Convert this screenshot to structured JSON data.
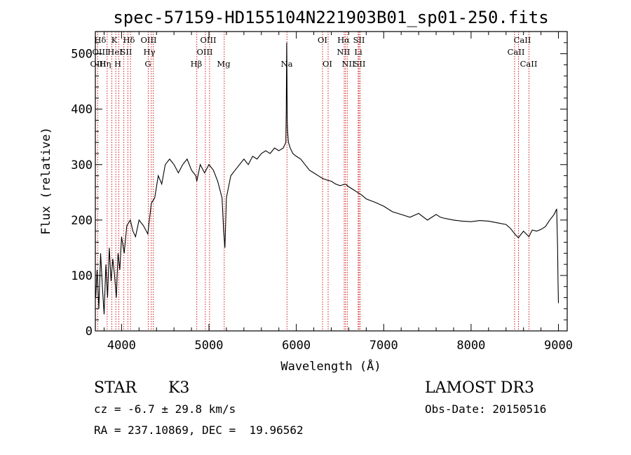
{
  "chart_data": {
    "type": "line",
    "title": "spec-57159-HD155104N221903B01_sp01-250.fits",
    "xlabel": "Wavelength (Å)",
    "ylabel": "Flux (relative)",
    "xlim": [
      3700,
      9100
    ],
    "ylim": [
      0,
      540
    ],
    "x_ticks": [
      4000,
      5000,
      6000,
      7000,
      8000,
      9000
    ],
    "x_tick_labels": [
      "4000",
      "5000",
      "6000",
      "7000",
      "8000",
      "9000"
    ],
    "y_ticks": [
      0,
      100,
      200,
      300,
      400,
      500
    ],
    "y_tick_labels": [
      "0",
      "100",
      "200",
      "300",
      "400",
      "500"
    ],
    "series": [
      {
        "name": "Flux",
        "x": [
          3705,
          3720,
          3740,
          3760,
          3780,
          3800,
          3820,
          3840,
          3860,
          3880,
          3900,
          3920,
          3940,
          3960,
          3980,
          4000,
          4030,
          4060,
          4100,
          4130,
          4160,
          4200,
          4250,
          4300,
          4340,
          4380,
          4420,
          4460,
          4500,
          4550,
          4600,
          4650,
          4700,
          4750,
          4800,
          4850,
          4861,
          4900,
          4950,
          5000,
          5050,
          5100,
          5150,
          5168,
          5183,
          5200,
          5250,
          5300,
          5350,
          5400,
          5450,
          5500,
          5550,
          5600,
          5650,
          5700,
          5750,
          5800,
          5850,
          5880,
          5885,
          5890,
          5893,
          5896,
          5900,
          5910,
          5930,
          5960,
          6000,
          6050,
          6100,
          6150,
          6200,
          6250,
          6300,
          6350,
          6400,
          6450,
          6500,
          6563,
          6600,
          6650,
          6700,
          6750,
          6800,
          6900,
          7000,
          7100,
          7200,
          7300,
          7400,
          7500,
          7600,
          7650,
          7700,
          7800,
          7900,
          8000,
          8100,
          8200,
          8300,
          8400,
          8450,
          8500,
          8542,
          8560,
          8600,
          8662,
          8700,
          8750,
          8800,
          8850,
          8900,
          8950,
          8980,
          8990,
          8995,
          9000
        ],
        "values": [
          60,
          110,
          40,
          140,
          80,
          30,
          120,
          60,
          150,
          90,
          130,
          100,
          60,
          140,
          110,
          170,
          140,
          190,
          200,
          180,
          170,
          200,
          190,
          175,
          230,
          240,
          280,
          265,
          300,
          310,
          300,
          285,
          300,
          310,
          290,
          280,
          270,
          300,
          285,
          300,
          290,
          270,
          240,
          180,
          150,
          240,
          280,
          290,
          300,
          310,
          300,
          315,
          310,
          320,
          325,
          320,
          330,
          325,
          330,
          340,
          400,
          520,
          460,
          380,
          360,
          340,
          330,
          320,
          315,
          310,
          300,
          290,
          285,
          280,
          275,
          272,
          270,
          265,
          262,
          265,
          260,
          255,
          250,
          245,
          238,
          232,
          225,
          215,
          210,
          205,
          212,
          200,
          210,
          205,
          203,
          200,
          198,
          197,
          199,
          198,
          195,
          192,
          185,
          175,
          168,
          172,
          180,
          170,
          182,
          180,
          183,
          188,
          200,
          210,
          220,
          150,
          90,
          50
        ],
        "color": "#000000"
      }
    ],
    "line_labels": {
      "row1": [
        "Hδ",
        "K",
        "Hδ",
        "OIII",
        "OIII",
        "OI",
        "Hα",
        "SII",
        "CaII"
      ],
      "row2": [
        "OIII",
        "HeI",
        "SII",
        "Hγ",
        "OIII",
        "NII",
        "Li",
        "CaII"
      ],
      "row3": [
        "OIII",
        "Hη",
        "H",
        "G",
        "Hβ",
        "Mg",
        "Na",
        "OI",
        "NII",
        "SII",
        "CaII"
      ]
    },
    "line_markers": [
      {
        "label": "OIII",
        "x": 3727
      },
      {
        "label": "Hη",
        "x": 3835
      },
      {
        "label": "Hδ",
        "x": 3889
      },
      {
        "label": "K",
        "x": 3934
      },
      {
        "label": "H",
        "x": 3968
      },
      {
        "label": "HeI",
        "x": 4026
      },
      {
        "label": "SII",
        "x": 4072
      },
      {
        "label": "Hδ",
        "x": 4102
      },
      {
        "label": "G",
        "x": 4305
      },
      {
        "label": "Hγ",
        "x": 4340
      },
      {
        "label": "OIII",
        "x": 4363
      },
      {
        "label": "Hβ",
        "x": 4861
      },
      {
        "label": "OIII",
        "x": 4959
      },
      {
        "label": "OIII",
        "x": 5007
      },
      {
        "label": "Mg",
        "x": 5175
      },
      {
        "label": "Na",
        "x": 5893
      },
      {
        "label": "OI",
        "x": 6300
      },
      {
        "label": "OI",
        "x": 6364
      },
      {
        "label": "NII",
        "x": 6548
      },
      {
        "label": "Hα",
        "x": 6563
      },
      {
        "label": "NII",
        "x": 6583
      },
      {
        "label": "Li",
        "x": 6708
      },
      {
        "label": "SII",
        "x": 6717
      },
      {
        "label": "SII",
        "x": 6731
      },
      {
        "label": "CaII",
        "x": 8498
      },
      {
        "label": "CaII",
        "x": 8542
      },
      {
        "label": "CaII",
        "x": 8662
      }
    ],
    "colors": {
      "line_marker": "#cc0000",
      "axes": "#000000",
      "spectrum": "#000000"
    }
  },
  "info": {
    "object_class": "STAR",
    "subclass": "K3",
    "survey": "LAMOST DR3",
    "cz": "cz = -6.7 ± 29.8 km/s",
    "obs_date": "Obs-Date: 20150516",
    "coords": "RA = 237.10869, DEC =  19.96562"
  }
}
